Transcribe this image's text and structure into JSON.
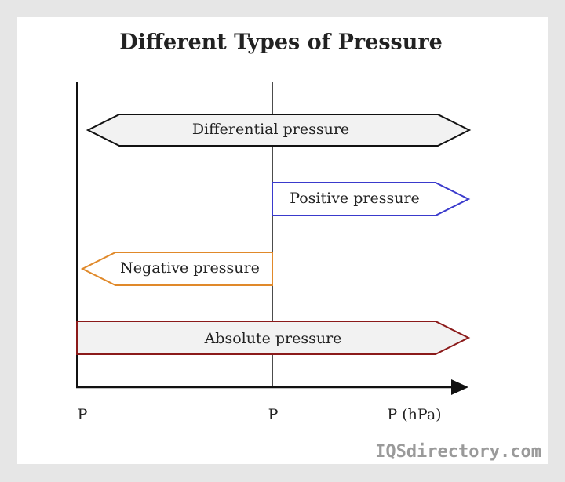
{
  "header": {
    "title": "Different Types of Pressure"
  },
  "nodes": [
    {
      "label": "Differential pressure"
    },
    {
      "label": "Positive pressure"
    },
    {
      "label": "Negative pressure"
    },
    {
      "label": "Absolute pressure"
    }
  ],
  "axis_labels": [
    "P",
    "P",
    "P (hPa)"
  ],
  "watermark": "IQSdirectory.com"
}
